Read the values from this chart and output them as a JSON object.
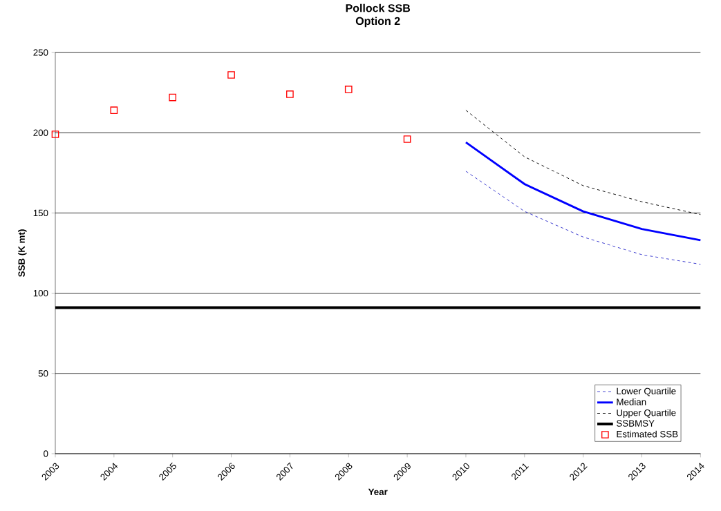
{
  "chart_data": {
    "type": "line",
    "title": "Pollock SSB",
    "subtitle": "Option 2",
    "xlabel": "Year",
    "ylabel": "SSB (K mt)",
    "xlim": [
      2003,
      2014
    ],
    "xticks": [
      2003,
      2004,
      2005,
      2006,
      2007,
      2008,
      2009,
      2010,
      2011,
      2012,
      2013,
      2014
    ],
    "ylim": [
      0,
      250
    ],
    "yticks": [
      0,
      50,
      100,
      150,
      200,
      250
    ],
    "grid": "y",
    "legend": "bottom right",
    "series": [
      {
        "name": "Lower Quartile",
        "color": "#3333cc",
        "line_style": "dashed",
        "marker": "none",
        "x": [
          2010,
          2011,
          2012,
          2013,
          2014
        ],
        "values": [
          176,
          151,
          135,
          124,
          118
        ]
      },
      {
        "name": "Median",
        "color": "#0000ff",
        "line_style": "solid",
        "marker": "none",
        "x": [
          2010,
          2011,
          2012,
          2013,
          2014
        ],
        "values": [
          194,
          168,
          151,
          140,
          133
        ]
      },
      {
        "name": "Upper Quartile",
        "color": "#000000",
        "line_style": "dashed",
        "marker": "none",
        "x": [
          2010,
          2011,
          2012,
          2013,
          2014
        ],
        "values": [
          214,
          185,
          167,
          157,
          149
        ]
      },
      {
        "name": "Estimated SSB",
        "type": "scatter",
        "color": "#ff0000",
        "marker": "square",
        "x": [
          2003,
          2004,
          2005,
          2006,
          2007,
          2008,
          2009
        ],
        "values": [
          199,
          214,
          222,
          236,
          224,
          227,
          196
        ]
      }
    ],
    "ref_lines": [
      {
        "axis": "y",
        "value": 91,
        "label": "SSBMSY",
        "color": "#000000"
      }
    ]
  }
}
